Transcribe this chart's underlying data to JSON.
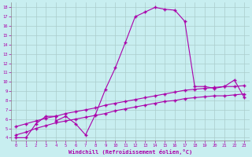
{
  "xlabel": "Windchill (Refroidissement éolien,°C)",
  "xlim": [
    -0.5,
    23.5
  ],
  "ylim": [
    3.7,
    18.5
  ],
  "xticks": [
    0,
    1,
    2,
    3,
    4,
    5,
    6,
    7,
    8,
    9,
    10,
    11,
    12,
    13,
    14,
    15,
    16,
    17,
    18,
    19,
    20,
    21,
    22,
    23
  ],
  "yticks": [
    4,
    5,
    6,
    7,
    8,
    9,
    10,
    11,
    12,
    13,
    14,
    15,
    16,
    17,
    18
  ],
  "bg_color": "#c8eef0",
  "line_color": "#aa00aa",
  "grid_color": "#aacccc",
  "line1_x": [
    0,
    1,
    2,
    3,
    4,
    4,
    5,
    6,
    7,
    8,
    9,
    10,
    11,
    12,
    13,
    14,
    15,
    16,
    17,
    18,
    19,
    20,
    21,
    22,
    23
  ],
  "line1_y": [
    4.0,
    4.0,
    5.5,
    6.3,
    6.3,
    5.8,
    6.3,
    5.5,
    4.3,
    6.5,
    9.2,
    11.5,
    14.2,
    17.0,
    17.5,
    18.0,
    17.8,
    17.7,
    16.5,
    9.5,
    9.5,
    9.3,
    9.5,
    10.2,
    8.3
  ],
  "line2_x": [
    0,
    1,
    2,
    3,
    4,
    5,
    6,
    7,
    8,
    9,
    10,
    11,
    12,
    13,
    14,
    15,
    16,
    17,
    18,
    19,
    20,
    21,
    22,
    23
  ],
  "line2_y": [
    5.2,
    5.5,
    5.8,
    6.1,
    6.3,
    6.6,
    6.8,
    7.0,
    7.2,
    7.5,
    7.7,
    7.9,
    8.1,
    8.3,
    8.5,
    8.7,
    8.9,
    9.1,
    9.2,
    9.3,
    9.4,
    9.5,
    9.5,
    9.6
  ],
  "line3_x": [
    0,
    1,
    2,
    3,
    4,
    5,
    6,
    7,
    8,
    9,
    10,
    11,
    12,
    13,
    14,
    15,
    16,
    17,
    18,
    19,
    20,
    21,
    22,
    23
  ],
  "line3_y": [
    4.3,
    4.6,
    5.0,
    5.3,
    5.6,
    5.8,
    6.0,
    6.2,
    6.4,
    6.6,
    6.9,
    7.1,
    7.3,
    7.5,
    7.7,
    7.9,
    8.0,
    8.2,
    8.3,
    8.4,
    8.5,
    8.5,
    8.6,
    8.7
  ]
}
